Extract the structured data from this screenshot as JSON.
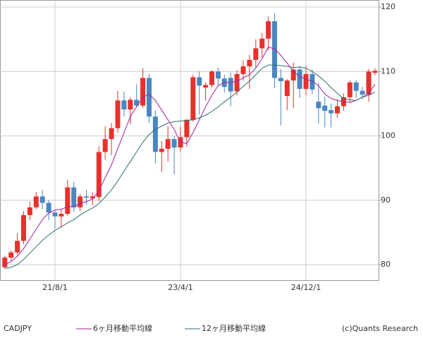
{
  "chart_data": {
    "type": "candlestick",
    "categories": [
      null,
      null,
      null,
      null,
      null,
      null,
      null,
      null,
      "21/8/1",
      null,
      null,
      null,
      null,
      null,
      null,
      null,
      null,
      null,
      null,
      null,
      null,
      null,
      null,
      null,
      null,
      null,
      null,
      null,
      "23/4/1",
      null,
      null,
      null,
      null,
      null,
      null,
      null,
      null,
      null,
      null,
      null,
      null,
      null,
      null,
      null,
      null,
      null,
      null,
      null,
      "24/12/1",
      null,
      null,
      null,
      null,
      null,
      null,
      null,
      null,
      null,
      null,
      null
    ],
    "series": [
      {
        "name": "CADJPY",
        "up_color": "#e8302c",
        "down_color": "#4a86c0",
        "open": [
          79.6,
          81.1,
          81.9,
          83.7,
          87.7,
          88.9,
          90.6,
          89.6,
          88.1,
          87.5,
          87.9,
          92.0,
          88.9,
          90.6,
          90.3,
          90.5,
          97.5,
          99.5,
          101.2,
          105.5,
          104.1,
          105.6,
          104.7,
          109.0,
          103.0,
          97.5,
          98.0,
          99.5,
          98.2,
          99.8,
          102.5,
          109.1,
          107.5,
          107.9,
          110.0,
          108.9,
          109.0,
          106.9,
          109.6,
          110.8,
          111.8,
          113.6,
          115.1,
          117.8,
          109.0,
          106.2,
          108.6,
          110.3,
          107.3,
          109.6,
          105.3,
          104.7,
          104.0,
          103.5,
          104.6,
          106.0,
          108.3,
          107.0,
          106.4,
          109.8
        ],
        "high": [
          81.4,
          82.2,
          84.9,
          88.3,
          89.8,
          91.3,
          91.6,
          90.0,
          88.5,
          88.7,
          93.2,
          92.9,
          91.0,
          91.6,
          91.2,
          98.4,
          101.5,
          102.0,
          107.0,
          106.9,
          106.0,
          108.0,
          110.5,
          109.6,
          104.0,
          99.2,
          101.5,
          100.0,
          101.5,
          102.6,
          109.5,
          110.0,
          108.3,
          110.2,
          110.6,
          109.5,
          109.8,
          110.2,
          111.7,
          112.6,
          115.0,
          116.0,
          118.5,
          119.0,
          110.4,
          108.8,
          111.4,
          110.8,
          110.9,
          110.3,
          108.3,
          106.1,
          105.0,
          105.7,
          106.6,
          108.6,
          108.7,
          107.6,
          110.4,
          110.5
        ],
        "low": [
          79.4,
          80.6,
          81.5,
          83.2,
          86.9,
          88.6,
          88.6,
          86.9,
          85.6,
          85.7,
          87.6,
          88.2,
          88.3,
          89.3,
          89.2,
          89.9,
          96.3,
          97.0,
          100.5,
          103.0,
          101.8,
          104.5,
          104.3,
          102.0,
          95.7,
          94.4,
          96.0,
          94.0,
          97.6,
          98.3,
          102.2,
          103.3,
          105.5,
          107.5,
          107.7,
          106.7,
          104.6,
          106.3,
          108.6,
          107.3,
          110.6,
          112.2,
          113.3,
          107.4,
          101.6,
          104.0,
          104.3,
          105.9,
          106.3,
          106.5,
          101.9,
          101.3,
          101.3,
          102.8,
          103.9,
          105.2,
          105.9,
          105.7,
          105.3,
          109.4
        ],
        "close": [
          81.1,
          81.9,
          83.7,
          87.7,
          88.9,
          90.6,
          89.6,
          88.1,
          87.5,
          87.9,
          92.0,
          88.9,
          90.6,
          90.4,
          90.6,
          97.5,
          99.5,
          101.2,
          105.5,
          104.1,
          105.6,
          104.7,
          109.0,
          103.0,
          97.5,
          98.0,
          99.5,
          98.2,
          99.8,
          102.5,
          109.1,
          107.8,
          107.9,
          110.0,
          108.9,
          107.6,
          106.9,
          109.6,
          110.8,
          111.8,
          113.6,
          115.1,
          117.8,
          109.0,
          108.5,
          108.6,
          110.3,
          107.3,
          109.6,
          107.2,
          104.3,
          103.9,
          103.5,
          104.6,
          106.0,
          108.3,
          107.0,
          106.4,
          110.0,
          110.1
        ]
      },
      {
        "name": "6ヶ月移動平均線",
        "type": "line",
        "color": "#a020a0",
        "values": [
          80.0,
          80.5,
          81.3,
          82.5,
          84.0,
          85.5,
          87.0,
          88.0,
          88.5,
          88.6,
          89.0,
          89.0,
          89.5,
          89.8,
          90.2,
          91.5,
          93.5,
          95.5,
          98.0,
          100.5,
          103.0,
          104.5,
          106.0,
          106.5,
          105.5,
          104.0,
          102.5,
          101.0,
          99.0,
          98.8,
          100.5,
          102.5,
          104.5,
          106.3,
          107.8,
          108.3,
          108.3,
          108.5,
          109.0,
          109.5,
          110.5,
          112.0,
          113.8,
          113.5,
          112.5,
          111.3,
          110.0,
          109.2,
          108.8,
          108.5,
          107.8,
          106.5,
          105.8,
          105.5,
          105.3,
          105.2,
          105.5,
          106.0,
          106.6,
          108.0
        ]
      },
      {
        "name": "12ヶ月移動平均線",
        "type": "line",
        "color": "#2e6e70",
        "values": [
          79.4,
          79.6,
          80.0,
          80.8,
          81.8,
          82.8,
          83.8,
          84.6,
          85.3,
          85.9,
          86.5,
          87.0,
          87.7,
          88.3,
          88.8,
          89.5,
          90.5,
          91.6,
          93.0,
          94.5,
          96.0,
          97.5,
          99.0,
          100.2,
          101.0,
          101.5,
          102.0,
          102.2,
          102.3,
          102.4,
          102.5,
          102.8,
          103.2,
          103.8,
          104.5,
          105.3,
          106.0,
          106.8,
          107.7,
          108.5,
          109.5,
          110.5,
          111.0,
          111.0,
          110.9,
          110.8,
          110.6,
          110.7,
          110.5,
          110.0,
          109.3,
          108.5,
          107.5,
          106.6,
          105.8,
          105.6,
          105.5,
          106.0,
          106.3,
          106.8
        ]
      }
    ],
    "ylim": [
      77.6,
      121.1
    ],
    "yticks": [
      80,
      90,
      100,
      110,
      120
    ],
    "grid": true,
    "copyright": "(c)Quants Research"
  }
}
